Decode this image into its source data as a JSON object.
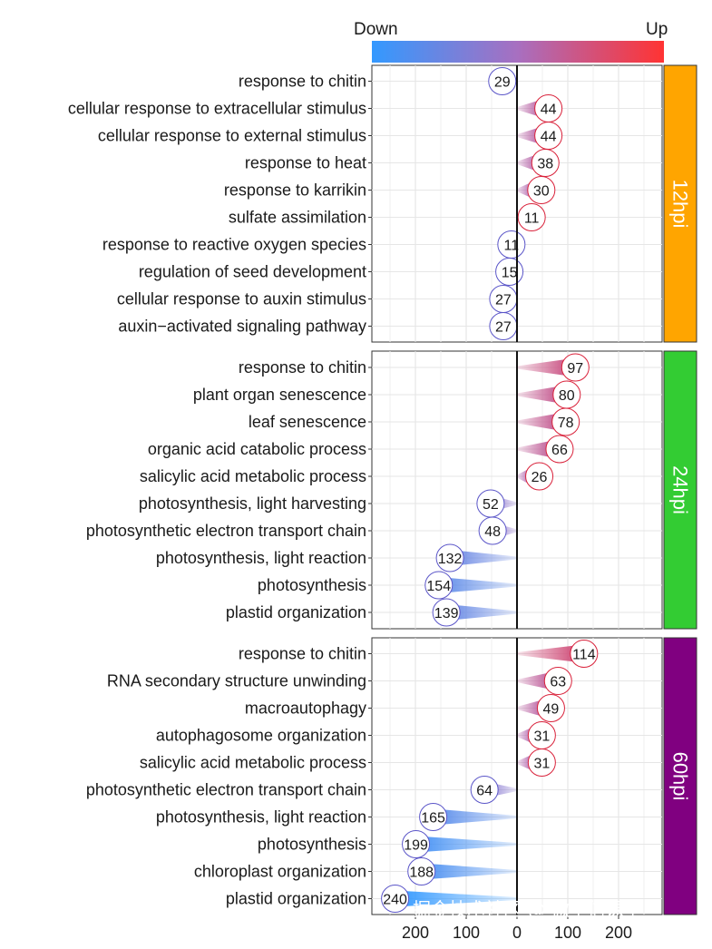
{
  "chart_data": {
    "type": "bar",
    "legend": {
      "low_label": "Down",
      "high_label": "Up",
      "low_color": "#3399ff",
      "mid_color": "#a86fc0",
      "high_color": "#ff3333"
    },
    "x_ticks": [
      "200",
      "100",
      "0",
      "100",
      "200"
    ],
    "x_tick_values": [
      -200,
      -100,
      0,
      100,
      200
    ],
    "xlim": [
      -270,
      270
    ],
    "grid": true,
    "panels": [
      {
        "name": "12hpi",
        "strip_color": "#FFA500",
        "terms": [
          {
            "label": "response to chitin",
            "value": -29,
            "display": "29"
          },
          {
            "label": "cellular response to extracellular stimulus",
            "value": 44,
            "display": "44"
          },
          {
            "label": "cellular response to external stimulus",
            "value": 44,
            "display": "44"
          },
          {
            "label": "response to heat",
            "value": 38,
            "display": "38"
          },
          {
            "label": "response to karrikin",
            "value": 30,
            "display": "30"
          },
          {
            "label": "sulfate assimilation",
            "value": 11,
            "display": "11"
          },
          {
            "label": "response to reactive oxygen species",
            "value": -11,
            "display": "11"
          },
          {
            "label": "regulation of seed development",
            "value": -15,
            "display": "15"
          },
          {
            "label": "cellular response to auxin stimulus",
            "value": -27,
            "display": "27"
          },
          {
            "label": "auxin−activated signaling pathway",
            "value": -27,
            "display": "27"
          }
        ]
      },
      {
        "name": "24hpi",
        "strip_color": "#33CC33",
        "terms": [
          {
            "label": "response to chitin",
            "value": 97,
            "display": "97"
          },
          {
            "label": "plant organ senescence",
            "value": 80,
            "display": "80"
          },
          {
            "label": "leaf senescence",
            "value": 78,
            "display": "78"
          },
          {
            "label": "organic acid catabolic process",
            "value": 66,
            "display": "66"
          },
          {
            "label": "salicylic acid metabolic process",
            "value": 26,
            "display": "26"
          },
          {
            "label": "photosynthesis, light harvesting",
            "value": -52,
            "display": "52"
          },
          {
            "label": "photosynthetic electron transport chain",
            "value": -48,
            "display": "48"
          },
          {
            "label": "photosynthesis, light reaction",
            "value": -132,
            "display": "132"
          },
          {
            "label": "photosynthesis",
            "value": -154,
            "display": "154"
          },
          {
            "label": "plastid organization",
            "value": -139,
            "display": "139"
          }
        ]
      },
      {
        "name": "60hpi",
        "strip_color": "#800080",
        "terms": [
          {
            "label": "response to chitin",
            "value": 114,
            "display": "114"
          },
          {
            "label": "RNA secondary structure unwinding",
            "value": 63,
            "display": "63"
          },
          {
            "label": "macroautophagy",
            "value": 49,
            "display": "49"
          },
          {
            "label": "autophagosome organization",
            "value": 31,
            "display": "31"
          },
          {
            "label": "salicylic acid metabolic process",
            "value": 31,
            "display": "31"
          },
          {
            "label": "photosynthetic electron transport chain",
            "value": -64,
            "display": "64"
          },
          {
            "label": "photosynthesis, light reaction",
            "value": -165,
            "display": "165"
          },
          {
            "label": "photosynthesis",
            "value": -199,
            "display": "199"
          },
          {
            "label": "chloroplast organization",
            "value": -188,
            "display": "188"
          },
          {
            "label": "plastid organization",
            "value": -240,
            "display": "240"
          }
        ]
      }
    ]
  },
  "watermark": "掘金技术社区 @ 微生信课堂"
}
